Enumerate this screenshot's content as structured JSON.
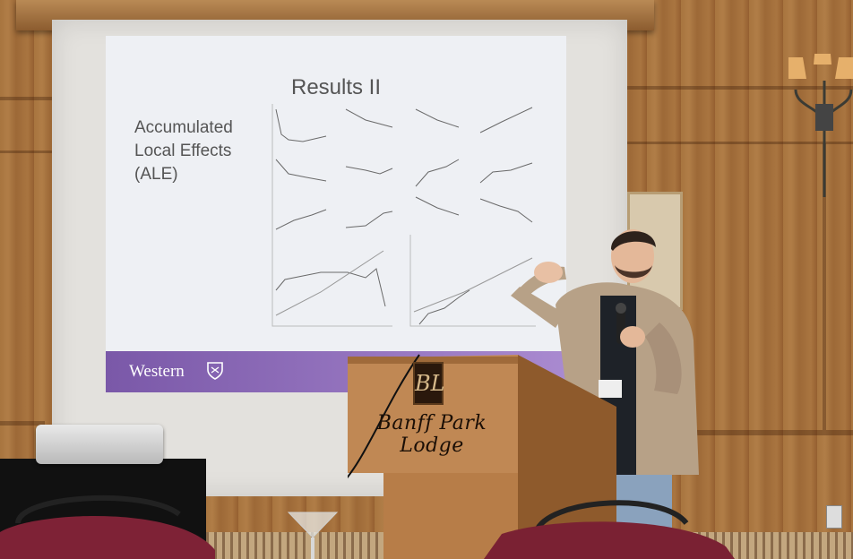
{
  "slide": {
    "title": "Results II",
    "subtitle_lines": [
      "Accumulated",
      "Local Effects",
      "(ALE)"
    ],
    "footer_brand": "Western"
  },
  "podium": {
    "logo_text": "BL",
    "sign_text": "Banff Park Lodge"
  },
  "colors": {
    "wood": "#a8753f",
    "slide_bg": "#eef0f4",
    "footer_purple": "#8a68bb",
    "podium_wood": "#b47b47"
  },
  "icons": [
    "western-crest-icon",
    "podium-logo-icon",
    "microphone-icon"
  ]
}
